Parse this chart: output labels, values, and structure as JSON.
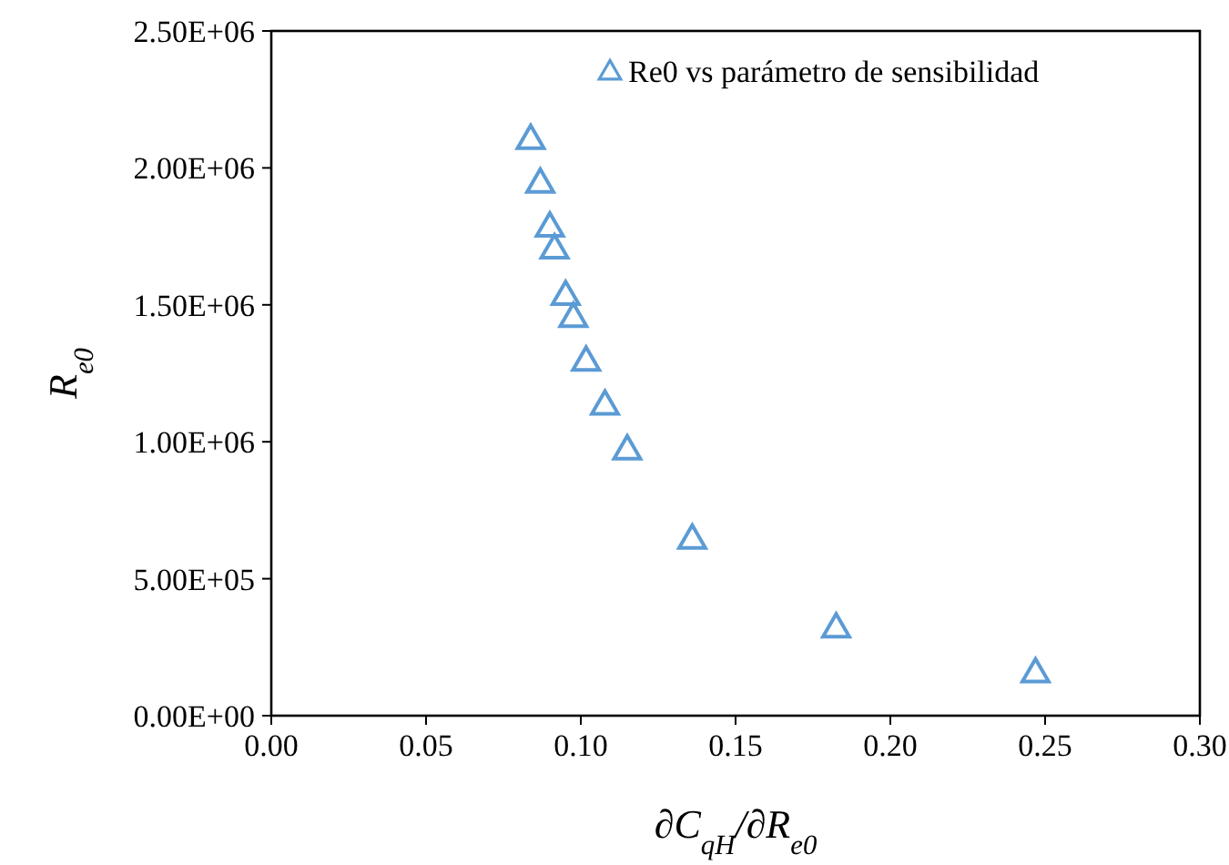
{
  "chart_data": {
    "type": "scatter",
    "xlabel": "∂C$_{qH}$/∂R$_{e0}$",
    "ylabel": "R$_{e0}$",
    "xlim": [
      0,
      0.3
    ],
    "xticks": [
      {
        "value": 0,
        "label": "0.00"
      },
      {
        "value": 0.05,
        "label": "0.05"
      },
      {
        "value": 0.1,
        "label": "0.10"
      },
      {
        "value": 0.15,
        "label": "0.15"
      },
      {
        "value": 0.2,
        "label": "0.20"
      },
      {
        "value": 0.25,
        "label": "0.25"
      },
      {
        "value": 0.3,
        "label": "0.30"
      }
    ],
    "ylim": [
      0,
      2500000
    ],
    "yticks": [
      {
        "value": 0,
        "label": "0.00E+00"
      },
      {
        "value": 500000,
        "label": "5.00E+05"
      },
      {
        "value": 1000000,
        "label": "1.00E+06"
      },
      {
        "value": 1500000,
        "label": "1.50E+06"
      },
      {
        "value": 2000000,
        "label": "2.00E+06"
      },
      {
        "value": 2500000,
        "label": "2.50E+06"
      }
    ],
    "grid": false,
    "legend": "top right",
    "marker": "triangle",
    "series": [
      {
        "name": "Re0 vs parámetro de sensibilidad",
        "color": "#5b9bd5",
        "x": [
          0.0838,
          0.0869,
          0.09,
          0.0915,
          0.0951,
          0.0976,
          0.1017,
          0.1078,
          0.115,
          0.136,
          0.1825,
          0.2469
        ],
        "values": [
          2100000,
          1940000,
          1780000,
          1700000,
          1530000,
          1450000,
          1290000,
          1130000,
          966000,
          640000,
          316000,
          152000
        ]
      }
    ]
  }
}
